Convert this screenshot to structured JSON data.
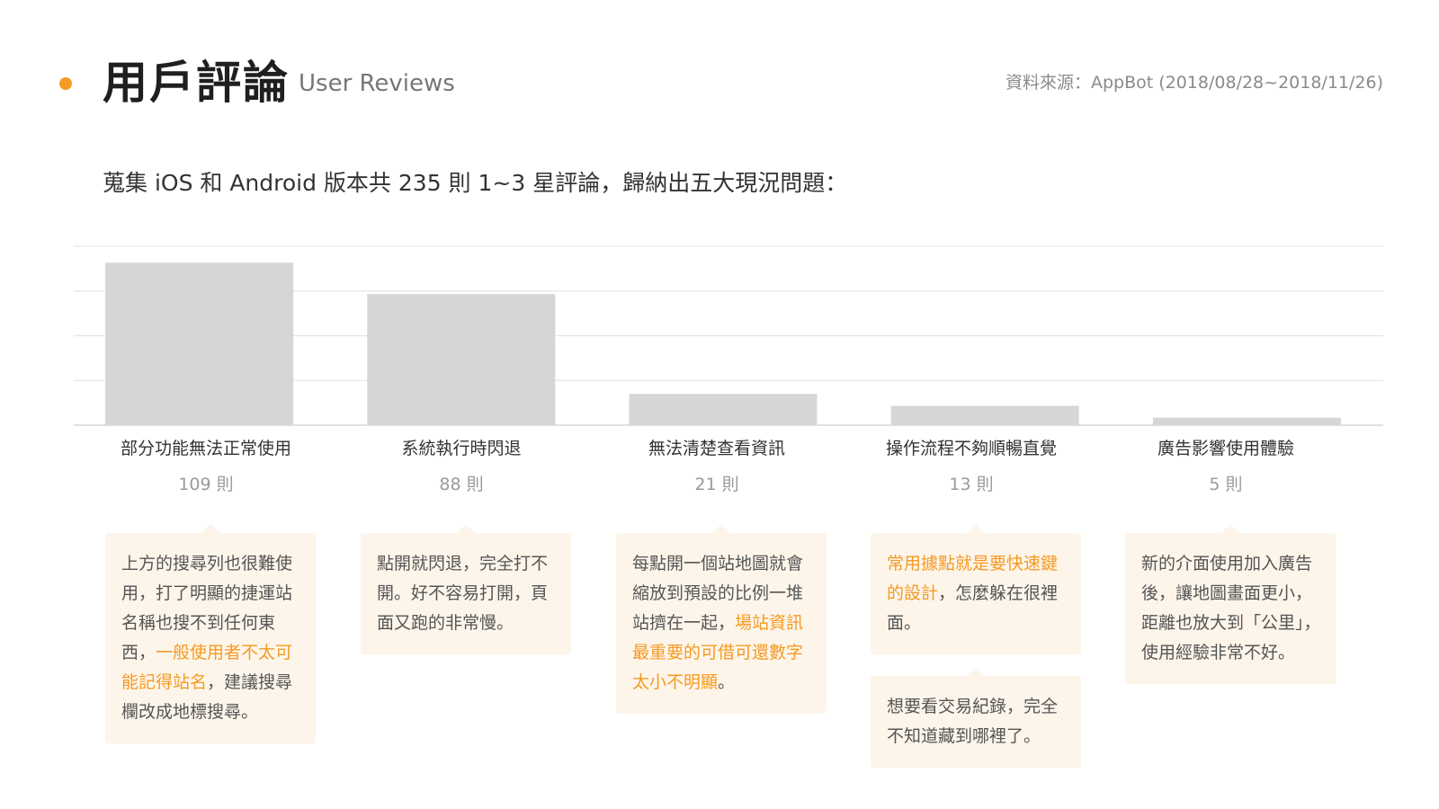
{
  "header": {
    "title": "用戶評論",
    "title_en": "User Reviews",
    "source": "資料來源：AppBot (2018/08/28~2018/11/26)"
  },
  "subtitle": "蒐集 iOS 和 Android 版本共 235 則 1~3 星評論，歸納出五大現況問題：",
  "colors": {
    "accent": "#f59a23",
    "bar": "#d6d6d8",
    "card_bg": "#fdf5ea",
    "grid": "#e6e6e6"
  },
  "chart_data": {
    "type": "bar",
    "categories": [
      "部分功能無法正常使用",
      "系統執行時閃退",
      "無法清楚查看資訊",
      "操作流程不夠順暢直覺",
      "廣告影響使用體驗"
    ],
    "values": [
      109,
      88,
      21,
      13,
      5
    ],
    "value_labels": [
      "109 則",
      "88 則",
      "21 則",
      "13 則",
      "5 則"
    ],
    "ylim": [
      0,
      120
    ],
    "grid": true,
    "title": "",
    "xlabel": "",
    "ylabel": ""
  },
  "reviews": [
    {
      "segments": [
        {
          "text": "上方的搜尋列也很難使用，打了明顯的捷運站名稱也搜不到任何東西，",
          "highlight": false
        },
        {
          "text": "一般使用者不太可能記得站名",
          "highlight": true
        },
        {
          "text": "，建議搜尋欄改成地標搜尋。",
          "highlight": false
        }
      ]
    },
    {
      "segments": [
        {
          "text": "點開就閃退，完全打不開。好不容易打開，頁面又跑的非常慢。",
          "highlight": false
        }
      ]
    },
    {
      "segments": [
        {
          "text": "每點開一個站地圖就會縮放到預設的比例一堆站擠在一起，",
          "highlight": false
        },
        {
          "text": "場站資訊最重要的可借可還數字太小不明顯",
          "highlight": true
        },
        {
          "text": "。",
          "highlight": false
        }
      ]
    },
    {
      "segments": [
        {
          "text": "常用據點就是要快速鍵的設計",
          "highlight": true
        },
        {
          "text": "，怎麼躲在很裡面。",
          "highlight": false
        }
      ]
    },
    {
      "segments": [
        {
          "text": "新的介面使用加入廣告後，讓地圖畫面更小，距離也放大到「公里」，使用經驗非常不好。",
          "highlight": false
        }
      ]
    },
    {
      "segments": [
        {
          "text": "想要看交易紀錄，完全不知道藏到哪裡了。",
          "highlight": false
        }
      ]
    }
  ]
}
